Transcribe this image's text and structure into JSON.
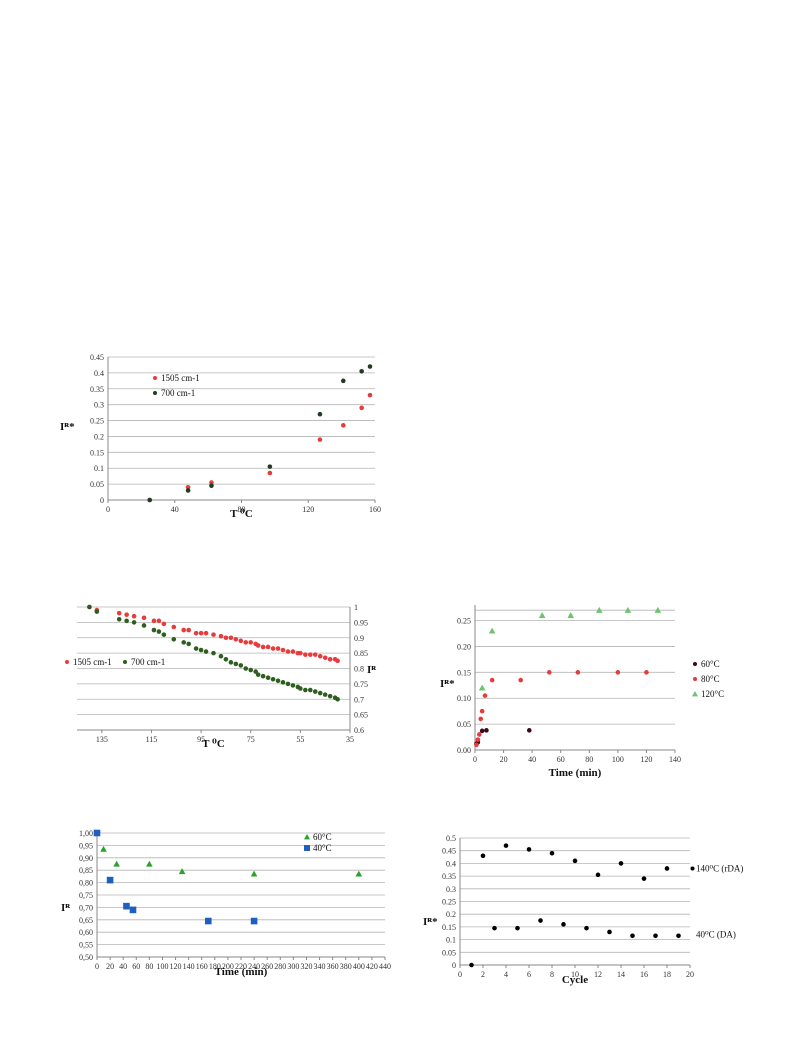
{
  "charts": [
    {
      "type": "scatter",
      "xlabel": "T ⁰C",
      "ylabel": "Iᴿ*",
      "xlim": [
        0,
        160
      ],
      "ylim": [
        0,
        0.45
      ],
      "xticks": [
        "0",
        "40",
        "80",
        "120",
        "160"
      ],
      "yticks": [
        "0",
        "0.05",
        "0.1",
        "0.15",
        "0.2",
        "0.25",
        "0.3",
        "0.35",
        "0.4",
        "0.45"
      ],
      "grid": "horizontal",
      "legend": "top-left",
      "series": [
        {
          "name": "1505 cm-1",
          "color": "#e83b3b",
          "shape": "circle",
          "x": [
            25,
            48,
            62,
            97,
            127,
            141,
            152,
            157
          ],
          "y": [
            0.0,
            0.04,
            0.055,
            0.085,
            0.19,
            0.235,
            0.29,
            0.33
          ]
        },
        {
          "name": "700 cm-1",
          "color": "#1f3d1f",
          "shape": "circle",
          "x": [
            25,
            48,
            62,
            97,
            127,
            141,
            152,
            157
          ],
          "y": [
            0.0,
            0.03,
            0.045,
            0.105,
            0.27,
            0.375,
            0.405,
            0.42
          ]
        }
      ]
    },
    {
      "type": "scatter",
      "xlabel": "T ⁰C",
      "ylabel": "Iᴿ",
      "xlim": [
        145,
        35
      ],
      "ylim": [
        0.6,
        1.0
      ],
      "xticks": [
        "135",
        "115",
        "95",
        "75",
        "55",
        "35"
      ],
      "xtickvals": [
        135,
        115,
        95,
        75,
        55,
        35
      ],
      "yticks": [
        "0.6",
        "0.65",
        "0.7",
        "0.75",
        "0.8",
        "0.85",
        "0.9",
        "0.95",
        "1"
      ],
      "grid": "horizontal",
      "legend": "left",
      "series": [
        {
          "name": "1505 cm-1",
          "color": "#e83b3b",
          "shape": "circle",
          "x": [
            140,
            137,
            128,
            125,
            122,
            118,
            114,
            112,
            110,
            106,
            102,
            100,
            97,
            95,
            93,
            90,
            87,
            85,
            83,
            81,
            79,
            77,
            75,
            73,
            72,
            70,
            68,
            66,
            64,
            62,
            60,
            58,
            56,
            55,
            53,
            51,
            49,
            47,
            45,
            43,
            41,
            40
          ],
          "y": [
            1.0,
            0.99,
            0.98,
            0.975,
            0.97,
            0.965,
            0.955,
            0.955,
            0.945,
            0.935,
            0.925,
            0.925,
            0.915,
            0.915,
            0.915,
            0.91,
            0.905,
            0.9,
            0.9,
            0.895,
            0.89,
            0.885,
            0.885,
            0.88,
            0.875,
            0.87,
            0.87,
            0.865,
            0.865,
            0.86,
            0.855,
            0.855,
            0.85,
            0.85,
            0.845,
            0.845,
            0.845,
            0.84,
            0.835,
            0.83,
            0.83,
            0.825
          ]
        },
        {
          "name": "700 cm-1",
          "color": "#2e5e1f",
          "shape": "circle",
          "x": [
            140,
            137,
            128,
            125,
            122,
            118,
            114,
            112,
            110,
            106,
            102,
            100,
            97,
            95,
            93,
            90,
            87,
            85,
            83,
            81,
            79,
            77,
            75,
            73,
            72,
            70,
            68,
            66,
            64,
            62,
            60,
            58,
            56,
            55,
            53,
            51,
            49,
            47,
            45,
            43,
            41,
            40
          ],
          "y": [
            1.0,
            0.985,
            0.96,
            0.955,
            0.95,
            0.94,
            0.925,
            0.92,
            0.91,
            0.895,
            0.885,
            0.88,
            0.865,
            0.86,
            0.855,
            0.85,
            0.84,
            0.83,
            0.82,
            0.815,
            0.81,
            0.8,
            0.795,
            0.79,
            0.78,
            0.775,
            0.77,
            0.765,
            0.76,
            0.755,
            0.75,
            0.745,
            0.74,
            0.735,
            0.73,
            0.73,
            0.725,
            0.72,
            0.715,
            0.71,
            0.705,
            0.7
          ]
        }
      ]
    },
    {
      "type": "scatter",
      "xlabel": "Time (min)",
      "ylabel": "Iᴿ*",
      "xlim": [
        0,
        140
      ],
      "ylim": [
        0,
        0.28
      ],
      "xticks": [
        "0",
        "20",
        "40",
        "60",
        "80",
        "100",
        "120",
        "140"
      ],
      "yticks": [
        "0.00",
        "0.05",
        "0.10",
        "0.15",
        "0.20",
        "0.25"
      ],
      "grid": "horizontal",
      "legend": "right",
      "series": [
        {
          "name": "60°C",
          "color": "#3b0a1a",
          "shape": "circle",
          "x": [
            1,
            2,
            5,
            8,
            38
          ],
          "y": [
            0.012,
            0.015,
            0.037,
            0.038,
            0.038
          ]
        },
        {
          "name": "80°C",
          "color": "#e83b3b",
          "shape": "circle",
          "x": [
            1,
            2,
            3,
            4,
            5,
            7,
            12,
            32,
            52,
            72,
            100,
            120
          ],
          "y": [
            0.01,
            0.02,
            0.03,
            0.06,
            0.075,
            0.105,
            0.135,
            0.135,
            0.15,
            0.15,
            0.15,
            0.15
          ]
        },
        {
          "name": "120°C",
          "color": "#6ec46e",
          "shape": "triangle",
          "x": [
            5,
            12,
            47,
            67,
            87,
            107,
            128
          ],
          "y": [
            0.12,
            0.23,
            0.26,
            0.26,
            0.27,
            0.27,
            0.27
          ]
        }
      ]
    },
    {
      "type": "scatter",
      "xlabel": "Time (min)",
      "ylabel": "Iᴿ",
      "xlim": [
        0,
        440
      ],
      "ylim": [
        0.5,
        1.0
      ],
      "xticks": [
        "0",
        "20",
        "40",
        "60",
        "80",
        "100",
        "120",
        "140",
        "160",
        "180",
        "200",
        "220",
        "240",
        "260",
        "280",
        "300",
        "320",
        "340",
        "360",
        "380",
        "400",
        "420",
        "440"
      ],
      "yticks": [
        "0,50",
        "0,55",
        "0,60",
        "0,65",
        "0,70",
        "0,75",
        "0,80",
        "0,85",
        "0,90",
        "0,95",
        "1,00"
      ],
      "grid": "horizontal",
      "legend": "top-right",
      "series": [
        {
          "name": "60°C",
          "color": "#29a329",
          "shape": "triangle",
          "x": [
            10,
            30,
            80,
            130,
            240,
            400
          ],
          "y": [
            0.935,
            0.875,
            0.875,
            0.845,
            0.835,
            0.835
          ]
        },
        {
          "name": "40°C",
          "color": "#1f5fbf",
          "shape": "square",
          "x": [
            0,
            20,
            45,
            55,
            170,
            240
          ],
          "y": [
            1.0,
            0.81,
            0.705,
            0.69,
            0.645,
            0.645
          ]
        }
      ]
    },
    {
      "type": "scatter",
      "xlabel": "Cycle",
      "ylabel": "Iᴿ*",
      "xlim": [
        0,
        20
      ],
      "ylim": [
        0,
        0.5
      ],
      "xticks": [
        "0",
        "2",
        "4",
        "6",
        "8",
        "10",
        "12",
        "14",
        "16",
        "18",
        "20"
      ],
      "yticks": [
        "0",
        "0.05",
        "0.1",
        "0.15",
        "0.2",
        "0.25",
        "0.3",
        "0.35",
        "0.4",
        "0.45",
        "0.5"
      ],
      "grid": "horizontal",
      "legend": "none",
      "annotations": [
        "140⁰C (rDA)",
        "40⁰C (DA)"
      ],
      "series": [
        {
          "name": "",
          "color": "#000000",
          "shape": "circle",
          "x": [
            1,
            2,
            3,
            4,
            5,
            6,
            7,
            8,
            9,
            10,
            11,
            12,
            13,
            14,
            15,
            16,
            17,
            18,
            19
          ],
          "y": [
            0.0,
            0.43,
            0.145,
            0.47,
            0.145,
            0.455,
            0.175,
            0.44,
            0.16,
            0.41,
            0.145,
            0.355,
            0.13,
            0.4,
            0.115,
            0.34,
            0.115,
            0.38,
            0.115
          ]
        }
      ]
    }
  ]
}
